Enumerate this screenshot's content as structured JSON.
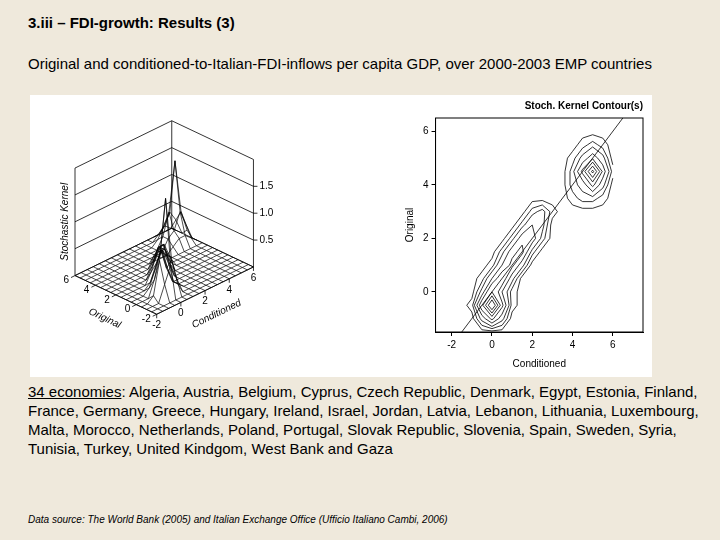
{
  "title": "3.iii – FDI-growth: Results (3)",
  "subtitle": "Original and conditioned-to-Italian-FDI-inflows per capita GDP, over 2000-2003 EMP countries",
  "chart_data": [
    {
      "type": "surface",
      "xlabel": "Conditioned",
      "ylabel": "Original",
      "zlabel": "Stochastic Kernel",
      "x": [
        -2,
        -1.5,
        -1,
        -0.5,
        0,
        0.5,
        1,
        1.5,
        2,
        2.5,
        3,
        3.5,
        4,
        4.5,
        5,
        5.5,
        6
      ],
      "y": [
        -2,
        -1.5,
        -1,
        -0.5,
        0,
        0.5,
        1,
        1.5,
        2,
        2.5,
        3,
        3.5,
        4,
        4.5,
        5,
        5.5,
        6
      ],
      "z": [
        [
          0,
          0,
          0,
          0,
          0,
          0,
          0,
          0,
          0,
          0,
          0,
          0,
          0,
          0,
          0,
          0,
          0
        ],
        [
          0,
          0,
          0,
          0,
          0,
          0,
          0,
          0,
          0,
          0,
          0,
          0,
          0,
          0,
          0,
          0,
          0
        ],
        [
          0,
          0,
          0,
          0.3,
          0.6,
          0.3,
          0,
          0,
          0,
          0,
          0,
          0,
          0,
          0,
          0,
          0,
          0
        ],
        [
          0,
          0,
          0.1,
          0.7,
          1.8,
          0.6,
          0.1,
          0,
          0,
          0,
          0,
          0,
          0,
          0,
          0,
          0,
          0
        ],
        [
          0,
          0,
          0,
          0.3,
          0.8,
          0.4,
          0.1,
          0,
          0,
          0,
          0,
          0,
          0,
          0,
          0,
          0,
          0
        ],
        [
          0,
          0,
          0,
          0.1,
          0.4,
          0.7,
          0.3,
          0,
          0,
          0,
          0,
          0,
          0,
          0,
          0,
          0,
          0
        ],
        [
          0,
          0,
          0,
          0,
          0.1,
          0.4,
          0.6,
          0.3,
          0,
          0,
          0,
          0,
          0,
          0,
          0,
          0,
          0
        ],
        [
          0,
          0,
          0,
          0,
          0,
          0.2,
          0.5,
          0.6,
          0.2,
          0,
          0,
          0,
          0,
          0,
          0,
          0,
          0
        ],
        [
          0,
          0,
          0,
          0,
          0,
          0,
          0.2,
          0.5,
          0.5,
          0.2,
          0,
          0,
          0,
          0,
          0,
          0,
          0
        ],
        [
          0,
          0,
          0,
          0,
          0,
          0,
          0,
          0.2,
          0.4,
          0.3,
          0,
          0,
          0,
          0,
          0,
          0,
          0
        ],
        [
          0,
          0,
          0,
          0,
          0,
          0,
          0,
          0,
          0.2,
          0.3,
          0.1,
          0,
          0,
          0,
          0,
          0,
          0
        ],
        [
          0,
          0,
          0,
          0,
          0,
          0,
          0,
          0,
          0,
          0,
          0,
          0,
          0.1,
          0.2,
          0.2,
          0.1,
          0
        ],
        [
          0,
          0,
          0,
          0,
          0,
          0,
          0,
          0,
          0,
          0,
          0,
          0,
          0.2,
          0.3,
          0.6,
          0.3,
          0
        ],
        [
          0,
          0,
          0,
          0,
          0,
          0,
          0,
          0,
          0,
          0,
          0,
          0,
          0.2,
          0.6,
          1.5,
          0.5,
          0.1
        ],
        [
          0,
          0,
          0,
          0,
          0,
          0,
          0,
          0,
          0,
          0,
          0,
          0,
          0.1,
          0.3,
          0.5,
          0.3,
          0
        ],
        [
          0,
          0,
          0,
          0,
          0,
          0,
          0,
          0,
          0,
          0,
          0,
          0,
          0,
          0.1,
          0.2,
          0.1,
          0
        ],
        [
          0,
          0,
          0,
          0,
          0,
          0,
          0,
          0,
          0,
          0,
          0,
          0,
          0,
          0,
          0,
          0,
          0
        ]
      ],
      "xlim": [
        -2,
        6
      ],
      "ylim": [
        -2,
        6
      ],
      "zlim": [
        0,
        2
      ],
      "xticks": [
        -2,
        0,
        2,
        4,
        6
      ],
      "yticks": [
        -2,
        0,
        2,
        4,
        6
      ],
      "zticks": [
        0.5,
        {
          "value": 1,
          "label": "1.0"
        },
        1.5
      ],
      "color": "#000000"
    },
    {
      "type": "contour",
      "title": "Stoch. Kernel Contour(s)",
      "xlabel": "Conditioned",
      "ylabel": "Original",
      "x": [
        -2,
        -1.5,
        -1,
        -0.5,
        0,
        0.5,
        1,
        1.5,
        2,
        2.5,
        3,
        3.5,
        4,
        4.5,
        5,
        5.5,
        6
      ],
      "y": [
        -2,
        -1.5,
        -1,
        -0.5,
        0,
        0.5,
        1,
        1.5,
        2,
        2.5,
        3,
        3.5,
        4,
        4.5,
        5,
        5.5,
        6
      ],
      "z": [
        [
          0,
          0,
          0,
          0,
          0,
          0,
          0,
          0,
          0,
          0,
          0,
          0,
          0,
          0,
          0,
          0,
          0
        ],
        [
          0,
          0,
          0,
          0,
          0,
          0,
          0,
          0,
          0,
          0,
          0,
          0,
          0,
          0,
          0,
          0,
          0
        ],
        [
          0,
          0,
          0,
          0.3,
          0.6,
          0.3,
          0,
          0,
          0,
          0,
          0,
          0,
          0,
          0,
          0,
          0,
          0
        ],
        [
          0,
          0,
          0.1,
          0.7,
          1.8,
          0.6,
          0.1,
          0,
          0,
          0,
          0,
          0,
          0,
          0,
          0,
          0,
          0
        ],
        [
          0,
          0,
          0,
          0.3,
          0.8,
          0.4,
          0.1,
          0,
          0,
          0,
          0,
          0,
          0,
          0,
          0,
          0,
          0
        ],
        [
          0,
          0,
          0,
          0.1,
          0.4,
          0.7,
          0.3,
          0,
          0,
          0,
          0,
          0,
          0,
          0,
          0,
          0,
          0
        ],
        [
          0,
          0,
          0,
          0,
          0.1,
          0.4,
          0.6,
          0.3,
          0,
          0,
          0,
          0,
          0,
          0,
          0,
          0,
          0
        ],
        [
          0,
          0,
          0,
          0,
          0,
          0.2,
          0.5,
          0.6,
          0.2,
          0,
          0,
          0,
          0,
          0,
          0,
          0,
          0
        ],
        [
          0,
          0,
          0,
          0,
          0,
          0,
          0.2,
          0.5,
          0.5,
          0.2,
          0,
          0,
          0,
          0,
          0,
          0,
          0
        ],
        [
          0,
          0,
          0,
          0,
          0,
          0,
          0,
          0.2,
          0.4,
          0.3,
          0,
          0,
          0,
          0,
          0,
          0,
          0
        ],
        [
          0,
          0,
          0,
          0,
          0,
          0,
          0,
          0,
          0.2,
          0.3,
          0.1,
          0,
          0,
          0,
          0,
          0,
          0
        ],
        [
          0,
          0,
          0,
          0,
          0,
          0,
          0,
          0,
          0,
          0,
          0,
          0,
          0.1,
          0.2,
          0.2,
          0.1,
          0
        ],
        [
          0,
          0,
          0,
          0,
          0,
          0,
          0,
          0,
          0,
          0,
          0,
          0,
          0.2,
          0.3,
          0.6,
          0.3,
          0
        ],
        [
          0,
          0,
          0,
          0,
          0,
          0,
          0,
          0,
          0,
          0,
          0,
          0,
          0.2,
          0.6,
          1.5,
          0.5,
          0.1
        ],
        [
          0,
          0,
          0,
          0,
          0,
          0,
          0,
          0,
          0,
          0,
          0,
          0,
          0.1,
          0.3,
          0.5,
          0.3,
          0
        ],
        [
          0,
          0,
          0,
          0,
          0,
          0,
          0,
          0,
          0,
          0,
          0,
          0,
          0,
          0.1,
          0.2,
          0.1,
          0
        ],
        [
          0,
          0,
          0,
          0,
          0,
          0,
          0,
          0,
          0,
          0,
          0,
          0,
          0,
          0,
          0,
          0,
          0
        ]
      ],
      "levels": [
        0.05,
        0.15,
        0.25,
        0.4,
        0.55,
        0.8,
        1.1,
        1.4
      ],
      "reference_line": {
        "x": [
          -2.8,
          7.5
        ],
        "y": [
          -2.8,
          7.5
        ]
      },
      "xlim": [
        -2.8,
        7.5
      ],
      "ylim": [
        -1.5,
        6.5
      ],
      "xticks": [
        -2,
        0,
        2,
        4,
        6
      ],
      "yticks": [
        0,
        2,
        4,
        6
      ],
      "color": "#000000"
    }
  ],
  "economies": "34 economies",
  "countries": ": Algeria, Austria, Belgium, Cyprus, Czech Republic, Denmark, Egypt, Estonia, Finland, France, Germany, Greece, Hungary, Ireland, Israel, Jordan, Latvia, Lebanon, Lithuania, Luxembourg, Malta, Morocco, Netherlands, Poland, Portugal, Slovak Republic, Slovenia, Spain, Sweden, Syria, Tunisia, Turkey, United Kindgom, West Bank and Gaza",
  "source": "Data source: The World Bank (2005) and Italian Exchange Office (Ufficio Italiano Cambi, 2006)"
}
